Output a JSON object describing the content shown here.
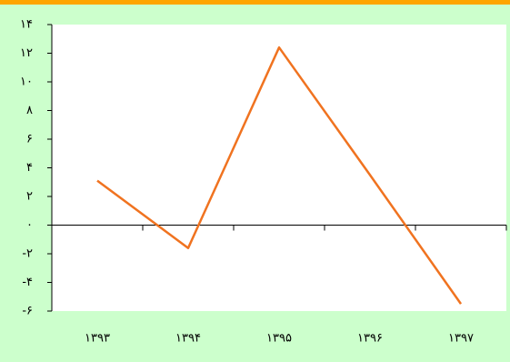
{
  "chart_data": {
    "type": "line",
    "categories": [
      "۱۳۹۳",
      "۱۳۹۴",
      "۱۳۹۵",
      "۱۳۹۶",
      "۱۳۹۷"
    ],
    "values": [
      3.1,
      -1.6,
      12.4,
      3.5,
      -5.5
    ],
    "color": "#f07320",
    "ylim": [
      -6,
      14
    ],
    "yticks": [
      {
        "value": -6,
        "label": "-۶"
      },
      {
        "value": -4,
        "label": "-۴"
      },
      {
        "value": -2,
        "label": "-۲"
      },
      {
        "value": 0,
        "label": "۰"
      },
      {
        "value": 2,
        "label": "۲"
      },
      {
        "value": 4,
        "label": "۴"
      },
      {
        "value": 6,
        "label": "۶"
      },
      {
        "value": 8,
        "label": "۸"
      },
      {
        "value": 10,
        "label": "۱۰"
      },
      {
        "value": 12,
        "label": "۱۲"
      },
      {
        "value": 14,
        "label": "۱۴"
      }
    ]
  }
}
